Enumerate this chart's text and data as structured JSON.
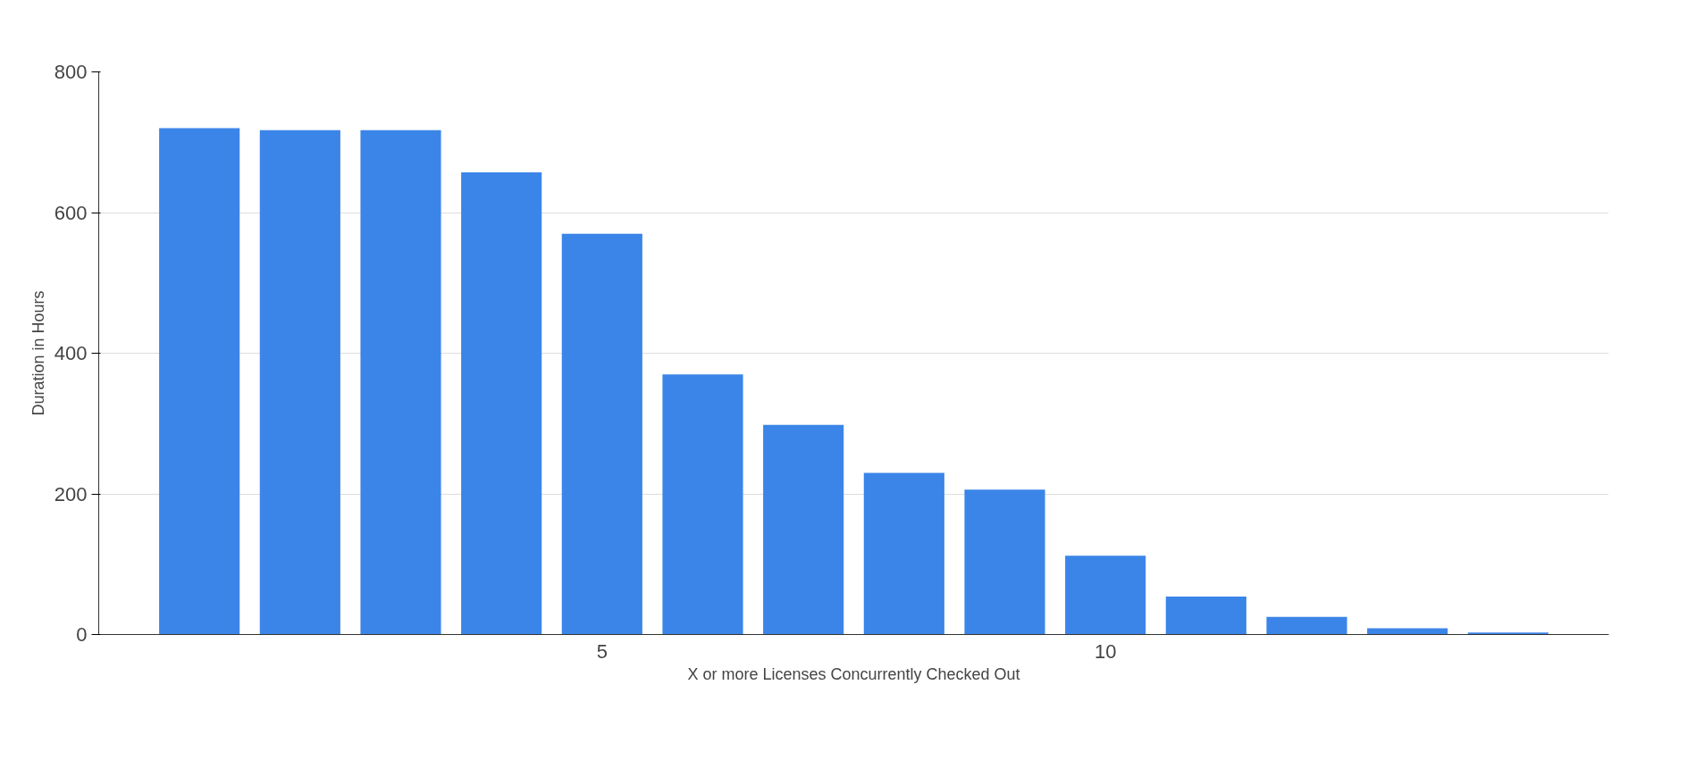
{
  "chart_data": {
    "type": "bar",
    "xlabel": "X or more Licenses Concurrently Checked Out",
    "ylabel": "Duration in Hours",
    "x": [
      1,
      2,
      3,
      4,
      5,
      6,
      7,
      8,
      9,
      10,
      11,
      12,
      13,
      14
    ],
    "series": [
      {
        "color": "#3b85e8",
        "values": [
          720,
          717,
          717,
          657,
          570,
          370,
          298,
          230,
          206,
          112,
          54,
          25,
          9,
          3
        ]
      }
    ],
    "xlim": [
      0,
      15
    ],
    "xticks": [
      5,
      10
    ],
    "ylim": [
      0,
      800
    ],
    "yticks": [
      0,
      200,
      400,
      600,
      800
    ],
    "grid": "y"
  }
}
